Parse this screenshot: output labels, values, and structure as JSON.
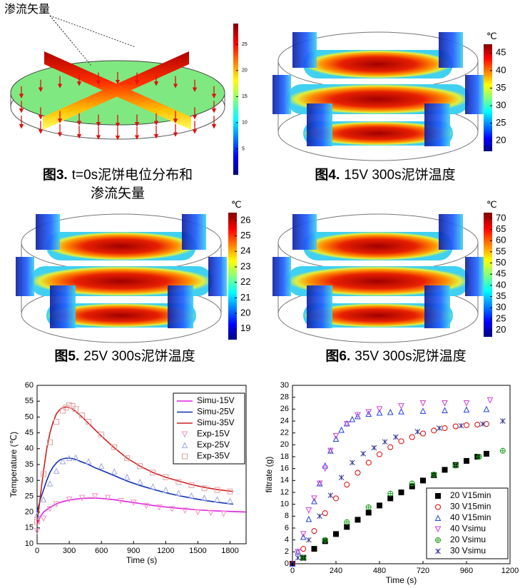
{
  "panels": [
    {
      "label": "渗流矢量",
      "caption_label": "图3.",
      "caption_lines": [
        "t=0s泥饼电位分布和",
        "渗流矢量"
      ],
      "colorbar": {
        "clim": [
          0,
          29
        ],
        "ticks": [
          5,
          10,
          15,
          20,
          25
        ]
      }
    },
    {
      "caption_label": "图4.",
      "caption_lines": [
        "15V 300s泥饼温度"
      ],
      "colorbar": {
        "unit": "℃",
        "clim": [
          17,
          47.5
        ],
        "ticks": [
          20,
          25,
          30,
          35,
          40,
          45
        ]
      }
    },
    {
      "caption_label": "图5.",
      "caption_lines": [
        "25V 300s泥饼温度"
      ],
      "colorbar": {
        "unit": "℃",
        "clim": [
          18.3,
          26.5
        ],
        "ticks": [
          19,
          20,
          21,
          22,
          23,
          24,
          25,
          26
        ]
      }
    },
    {
      "caption_label": "图6.",
      "caption_lines": [
        "35V 300s泥饼温度"
      ],
      "colorbar": {
        "unit": "℃",
        "clim": [
          17,
          72.5
        ],
        "ticks": [
          20,
          25,
          30,
          35,
          40,
          45,
          50,
          55,
          60,
          65,
          70
        ]
      }
    }
  ],
  "chart_data": [
    {
      "type": "line",
      "xlabel": "Time (s)",
      "ylabel": "Temperature (℃)",
      "xlim": [
        0,
        1950
      ],
      "ylim": [
        10,
        60
      ],
      "xticks": [
        0,
        300,
        600,
        900,
        1200,
        1500,
        1800
      ],
      "yticks": [
        10,
        15,
        20,
        25,
        30,
        35,
        40,
        45,
        50,
        55,
        60
      ],
      "legend": "upper right",
      "series": [
        {
          "name": "Simu-15V",
          "color": "#e020e0",
          "mode": "line",
          "x": [
            0,
            30,
            60,
            120,
            180,
            240,
            300,
            360,
            420,
            480,
            540,
            600,
            720,
            840,
            960,
            1080,
            1200,
            1350,
            1500,
            1650,
            1800,
            1950
          ],
          "values": [
            16,
            18.5,
            20,
            21.5,
            22.6,
            23.3,
            23.8,
            24.1,
            24.3,
            24.4,
            24.4,
            24.3,
            23.9,
            23.3,
            22.7,
            22.1,
            21.6,
            21.1,
            20.7,
            20.4,
            20.2,
            20
          ]
        },
        {
          "name": "Simu-25V",
          "color": "#1030b0",
          "mode": "line",
          "x": [
            0,
            30,
            60,
            90,
            120,
            150,
            180,
            210,
            240,
            270,
            300,
            330,
            360,
            420,
            480,
            540,
            600,
            720,
            840,
            960,
            1080,
            1200,
            1320,
            1440,
            1560,
            1680,
            1830
          ],
          "values": [
            20,
            24,
            27,
            30,
            32.5,
            34.3,
            35.5,
            36.4,
            36.8,
            37,
            37,
            36.9,
            36.6,
            35.8,
            35,
            34,
            33.2,
            31.5,
            29.8,
            28.4,
            27.2,
            26.1,
            25.2,
            24.4,
            23.7,
            23.1,
            22.5
          ]
        },
        {
          "name": "Simu-35V",
          "color": "#d02020",
          "mode": "line",
          "x": [
            0,
            30,
            60,
            90,
            120,
            150,
            180,
            210,
            240,
            270,
            300,
            330,
            360,
            420,
            480,
            540,
            600,
            720,
            840,
            960,
            1080,
            1200,
            1320,
            1440,
            1560,
            1680,
            1830
          ],
          "values": [
            16,
            25,
            33,
            40,
            45,
            48.5,
            51,
            52.3,
            53,
            53.2,
            53,
            52.5,
            51.8,
            50,
            48,
            46,
            44,
            40.3,
            37,
            34.5,
            32.5,
            31,
            29.8,
            28.7,
            27.8,
            27.1,
            26.5
          ]
        },
        {
          "name": "Exp-15V",
          "color": "#f090c0",
          "mode": "marker",
          "marker": "triangle-down",
          "x": [
            0,
            60,
            120,
            180,
            300,
            420,
            540,
            660,
            780,
            900,
            1020,
            1140,
            1260,
            1380,
            1500,
            1620,
            1740
          ],
          "values": [
            14,
            18,
            21,
            22.5,
            24,
            24.5,
            25,
            24.5,
            23.5,
            23,
            22,
            21.5,
            21,
            20.5,
            20,
            19.8,
            19.5
          ]
        },
        {
          "name": "Exp-25V",
          "color": "#a0a8e0",
          "mode": "marker",
          "marker": "triangle-up",
          "x": [
            0,
            60,
            120,
            180,
            240,
            300,
            360,
            480,
            600,
            720,
            840,
            960,
            1080,
            1200,
            1320,
            1440,
            1560,
            1680,
            1800
          ],
          "values": [
            19,
            24,
            29,
            33,
            36,
            37,
            37.2,
            36,
            34.5,
            32.8,
            31,
            29.5,
            28,
            27,
            26,
            25.2,
            24.5,
            24,
            23.5
          ]
        },
        {
          "name": "Exp-35V",
          "color": "#e0a0a0",
          "mode": "marker",
          "marker": "square",
          "x": [
            0,
            60,
            120,
            180,
            240,
            270,
            300,
            330,
            360,
            420,
            480,
            600,
            720,
            840,
            960,
            1080,
            1200,
            1320,
            1440,
            1560,
            1680,
            1800
          ],
          "values": [
            17,
            32,
            42,
            48.5,
            52,
            53,
            53.7,
            53.5,
            52.5,
            50.5,
            48.5,
            44.5,
            40.5,
            37,
            34.5,
            32.5,
            31,
            29.5,
            28.5,
            27.5,
            27,
            26.5
          ]
        }
      ]
    },
    {
      "type": "scatter",
      "xlabel": "Time (s)",
      "ylabel": "filtrate (g)",
      "xlim": [
        0,
        1200
      ],
      "ylim": [
        0,
        30
      ],
      "xticks": [
        0,
        240,
        480,
        720,
        960,
        1200
      ],
      "yticks": [
        0,
        2,
        4,
        6,
        8,
        10,
        12,
        14,
        16,
        18,
        20,
        22,
        24,
        26,
        28,
        30
      ],
      "legend": "lower right",
      "series": [
        {
          "name": "20 V15min",
          "color": "#000000",
          "mode": "marker",
          "marker": "square",
          "filled": true,
          "x": [
            0,
            60,
            120,
            180,
            240,
            300,
            360,
            420,
            480,
            540,
            600,
            660,
            720,
            780,
            840,
            900,
            960,
            1020,
            1070
          ],
          "values": [
            0,
            1,
            2.5,
            3.8,
            5,
            6.2,
            7.4,
            8.6,
            9.8,
            11,
            12,
            13,
            14,
            14.9,
            15.8,
            16.6,
            17.3,
            18,
            18.5
          ]
        },
        {
          "name": "30 V15min",
          "color": "#e00000",
          "mode": "marker",
          "marker": "circle",
          "x": [
            0,
            60,
            120,
            180,
            240,
            300,
            360,
            420,
            480,
            540,
            600,
            660,
            720,
            780,
            840,
            900,
            960,
            1020,
            1070
          ],
          "values": [
            0,
            2.5,
            5.5,
            8.5,
            11,
            13.3,
            15.3,
            17,
            18.4,
            19.6,
            20.6,
            21.3,
            21.9,
            22.4,
            22.8,
            23.1,
            23.3,
            23.4,
            23.5
          ]
        },
        {
          "name": "40 V15min",
          "color": "#2040e0",
          "mode": "marker",
          "marker": "triangle-up",
          "x": [
            0,
            30,
            60,
            90,
            120,
            150,
            180,
            210,
            240,
            270,
            300,
            330,
            360,
            420,
            480,
            540,
            600,
            720,
            840,
            960,
            1070
          ],
          "values": [
            0,
            2,
            4.5,
            7.5,
            10.5,
            13.5,
            16.5,
            19,
            21,
            22.5,
            23.6,
            24.3,
            24.8,
            25.2,
            25.4,
            25.5,
            25.6,
            25.7,
            25.8,
            25.9,
            26
          ]
        },
        {
          "name": "40 Vsimu",
          "color": "#d040d0",
          "mode": "marker",
          "marker": "triangle-down",
          "x": [
            30,
            60,
            90,
            120,
            150,
            180,
            210,
            240,
            300,
            360,
            420,
            480,
            600,
            720,
            840,
            960,
            1090
          ],
          "values": [
            2,
            5,
            9,
            11,
            13.5,
            16,
            19,
            21.5,
            23.5,
            25,
            25.5,
            26,
            26.5,
            27,
            27,
            27,
            27.5
          ]
        },
        {
          "name": "20 Vsimu",
          "color": "#20a020",
          "mode": "marker",
          "marker": "plus-circle",
          "x": [
            60,
            180,
            300,
            420,
            540,
            660,
            780,
            900,
            1030,
            1160
          ],
          "values": [
            1,
            4,
            7,
            9.5,
            11.8,
            13.5,
            15,
            16.5,
            18,
            19
          ]
        },
        {
          "name": "30 Vsimu",
          "color": "#303090",
          "mode": "marker",
          "marker": "x",
          "x": [
            30,
            90,
            150,
            210,
            270,
            330,
            390,
            450,
            510,
            570,
            690,
            810,
            930,
            1050,
            1160
          ],
          "values": [
            1,
            4,
            8,
            11.5,
            14.5,
            17,
            18.5,
            19.5,
            20.5,
            21.3,
            22.2,
            22.8,
            23.2,
            23.5,
            24
          ]
        }
      ]
    }
  ]
}
